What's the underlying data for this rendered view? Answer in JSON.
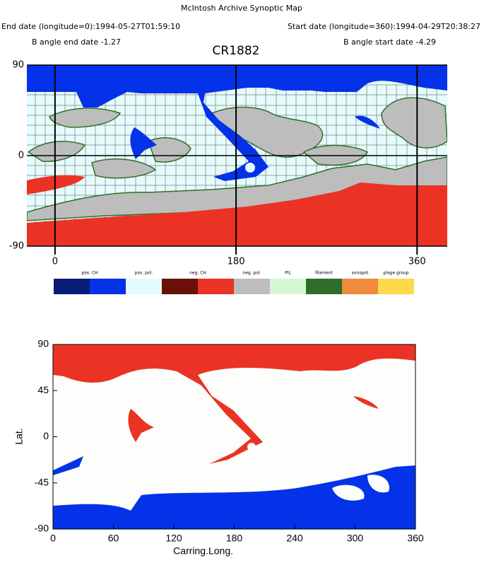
{
  "title": "McIntosh Archive Synoptic Map",
  "end_date": "End date (longitude=0):1994-05-27T01:59:10",
  "start_date": "Start date (longitude=360):1994-04-29T20:38:27",
  "b_angle_end": "B angle end date -1.27",
  "b_angle_start": "B angle start date -4.29",
  "legend": [
    {
      "name": "pos. CH",
      "colors": [
        "#0b1c78",
        "#0432e8"
      ]
    },
    {
      "name": "pos. pol.",
      "colors": [
        "#e6fbfb"
      ]
    },
    {
      "name": "neg. CH",
      "colors": [
        "#6a1008",
        "#ea3324"
      ]
    },
    {
      "name": "neg. pol.",
      "colors": [
        "#bdbdbd"
      ]
    },
    {
      "name": "PIL",
      "colors": [
        "#d4f7d4"
      ]
    },
    {
      "name": "filament",
      "colors": [
        "#2f6e2a"
      ]
    },
    {
      "name": "sunspot",
      "colors": [
        "#f08a3c"
      ]
    },
    {
      "name": "plage group",
      "colors": [
        "#fbd94b"
      ]
    }
  ],
  "chart_data": [
    {
      "type": "map",
      "title": "CR1882",
      "xlim": [
        -28,
        390
      ],
      "ylim": [
        -90,
        90
      ],
      "xticks": [
        0,
        180,
        360
      ],
      "yticks": [
        90,
        0,
        -90
      ]
    },
    {
      "type": "map",
      "xlabel": "Carring.Long.",
      "ylabel": "Lat.",
      "xlim": [
        0,
        360
      ],
      "ylim": [
        -90,
        90
      ],
      "xticks": [
        0,
        60,
        120,
        180,
        240,
        300,
        360
      ],
      "yticks": [
        -90,
        -45,
        0,
        45,
        90
      ]
    }
  ]
}
